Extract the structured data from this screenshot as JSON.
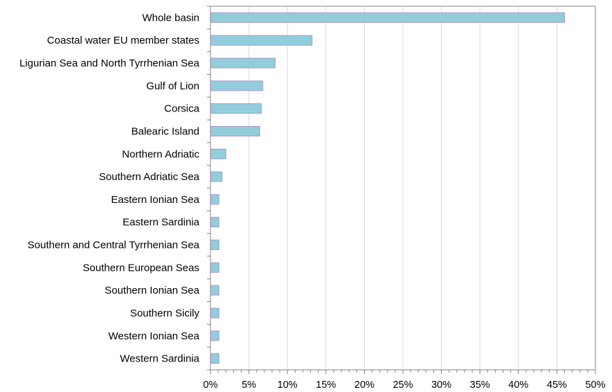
{
  "chart_data": {
    "type": "bar",
    "orientation": "horizontal",
    "categories": [
      "Whole basin",
      "Coastal water EU member states",
      "Ligurian Sea and North Tyrrhenian Sea",
      "Gulf of Lion",
      "Corsica",
      "Balearic Island",
      "Northern Adriatic",
      "Southern Adriatic Sea",
      "Eastern Ionian Sea",
      "Eastern Sardinia",
      "Southern and Central Tyrrhenian Sea",
      "Southern European Seas",
      "Southern Ionian Sea",
      "Southern Sicily",
      "Western Ionian Sea",
      "Western Sardinia"
    ],
    "values": [
      46.0,
      13.2,
      8.4,
      6.8,
      6.6,
      6.4,
      2.0,
      1.5,
      1.1,
      1.1,
      1.1,
      1.1,
      1.1,
      1.1,
      1.1,
      1.1
    ],
    "title": "",
    "xlabel": "",
    "ylabel": "",
    "xlim": [
      0,
      50
    ],
    "x_ticks": [
      0,
      5,
      10,
      15,
      20,
      25,
      30,
      35,
      40,
      45,
      50
    ],
    "x_tick_labels": [
      "0%",
      "5%",
      "10%",
      "15%",
      "20%",
      "25%",
      "30%",
      "35%",
      "40%",
      "45%",
      "50%"
    ],
    "grid": "vertical",
    "legend": "none",
    "bar_fill": "#92cddc",
    "bar_stroke": "#a59ac7",
    "axis_color": "#808080",
    "grid_color": "#d9d9d9"
  }
}
